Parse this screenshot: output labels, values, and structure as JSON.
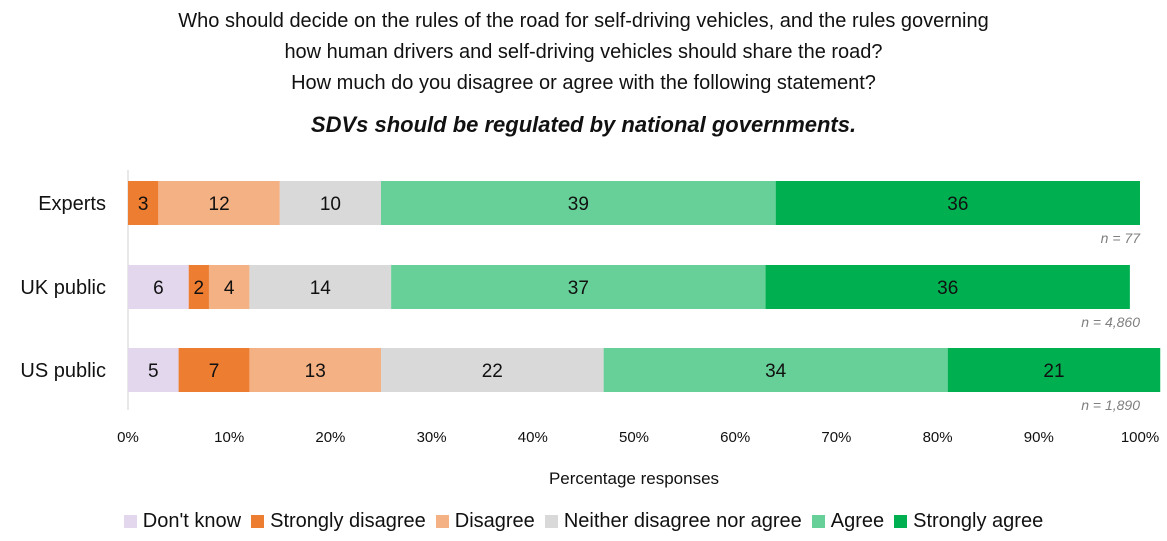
{
  "chart_data": {
    "type": "bar",
    "orientation": "horizontal",
    "stacked": true,
    "title_lines": [
      "Who should decide on the rules of the road for self-driving vehicles, and the rules governing",
      "how human drivers and self-driving vehicles should share the road?",
      "How much do you disagree or agree with the following statement?"
    ],
    "subtitle": "SDVs should be regulated by national governments.",
    "xlabel": "Percentage responses",
    "ylabel": "",
    "xlim": [
      0,
      100
    ],
    "xticks": [
      "0%",
      "10%",
      "20%",
      "30%",
      "40%",
      "50%",
      "60%",
      "70%",
      "80%",
      "90%",
      "100%"
    ],
    "grid": false,
    "legend_position": "bottom",
    "categories": [
      "Experts",
      "UK public",
      "US public"
    ],
    "sample_sizes": [
      "n = 77",
      "n = 4,860",
      "n = 1,890"
    ],
    "series": [
      {
        "name": "Don't know",
        "color": "#e3d7ee",
        "values": [
          0,
          6,
          5
        ],
        "labels": [
          "",
          "6",
          "5"
        ]
      },
      {
        "name": "Strongly disagree",
        "color": "#ed7d31",
        "values": [
          3,
          2,
          7
        ],
        "labels": [
          "3",
          "2",
          "7"
        ]
      },
      {
        "name": "Disagree",
        "color": "#f4b183",
        "values": [
          12,
          4,
          13
        ],
        "labels": [
          "12",
          "4",
          "13"
        ]
      },
      {
        "name": "Neither disagree nor agree",
        "color": "#d9d9d9",
        "values": [
          10,
          14,
          22
        ],
        "labels": [
          "10",
          "14",
          "22"
        ]
      },
      {
        "name": "Agree",
        "color": "#66d098",
        "values": [
          39,
          37,
          34
        ],
        "labels": [
          "39",
          "37",
          "34"
        ]
      },
      {
        "name": "Strongly agree",
        "color": "#00b050",
        "values": [
          36,
          36,
          21
        ],
        "labels": [
          "36",
          "36",
          "21"
        ]
      }
    ]
  }
}
